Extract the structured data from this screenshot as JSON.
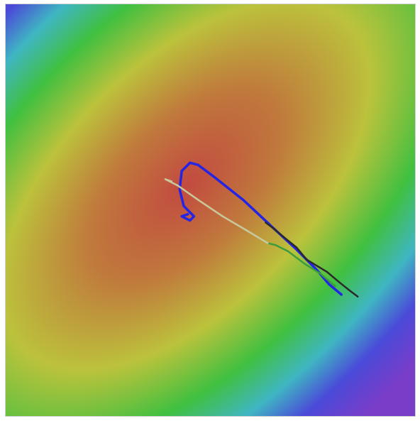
{
  "chart_data": {
    "type": "heatmap",
    "title": "",
    "xlabel": "",
    "ylabel": "",
    "xlim": [
      -1,
      1
    ],
    "ylim": [
      -1,
      1
    ],
    "grid": false,
    "legend": "none",
    "colormap": [
      "#7a3dc8",
      "#4a4ad8",
      "#3fb6c2",
      "#40c040",
      "#bcc23c",
      "#c07a3c",
      "#c24a40"
    ],
    "surface": {
      "kind": "elliptical-bowl",
      "center": [
        -0.12,
        0.12
      ],
      "major_axis_angle_deg": 45,
      "description_values": {
        "major_scale": 1.55,
        "minor_scale": 0.82
      }
    },
    "series": [
      {
        "color": "#2424e6",
        "points": [
          [
            0.64,
            -0.41
          ],
          [
            0.58,
            -0.36
          ],
          [
            0.52,
            -0.29
          ],
          [
            0.42,
            -0.19
          ],
          [
            0.3,
            -0.08
          ],
          [
            0.16,
            0.05
          ],
          [
            0.02,
            0.16
          ],
          [
            -0.06,
            0.22
          ],
          [
            -0.1,
            0.23
          ],
          [
            -0.14,
            0.19
          ],
          [
            -0.15,
            0.1
          ],
          [
            -0.13,
            0.02
          ],
          [
            -0.08,
            -0.03
          ],
          [
            -0.1,
            -0.05
          ],
          [
            -0.14,
            -0.03
          ],
          [
            -0.11,
            -0.02
          ]
        ]
      },
      {
        "color": "#3c9c3c",
        "points": [
          [
            0.61,
            -0.37
          ],
          [
            0.54,
            -0.31
          ],
          [
            0.46,
            -0.26
          ],
          [
            0.38,
            -0.2
          ],
          [
            0.32,
            -0.17
          ],
          [
            0.28,
            -0.16
          ]
        ]
      },
      {
        "color": "#2a2a2a",
        "points": [
          [
            0.72,
            -0.42
          ],
          [
            0.68,
            -0.39
          ],
          [
            0.63,
            -0.35
          ],
          [
            0.57,
            -0.3
          ],
          [
            0.52,
            -0.27
          ],
          [
            0.47,
            -0.24
          ],
          [
            0.42,
            -0.18
          ],
          [
            0.37,
            -0.14
          ],
          [
            0.31,
            -0.09
          ],
          [
            0.27,
            -0.06
          ]
        ]
      },
      {
        "color": "#c8c89a",
        "points": [
          [
            0.28,
            -0.16
          ],
          [
            0.18,
            -0.1
          ],
          [
            0.06,
            -0.03
          ],
          [
            -0.06,
            0.05
          ],
          [
            -0.16,
            0.12
          ],
          [
            -0.22,
            0.15
          ],
          [
            -0.19,
            0.14
          ]
        ]
      }
    ]
  }
}
